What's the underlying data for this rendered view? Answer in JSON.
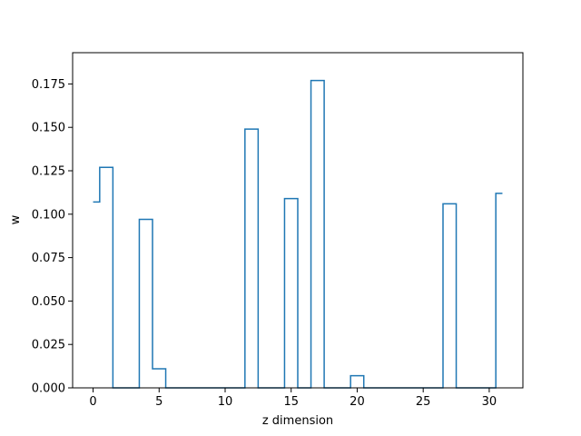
{
  "chart_data": {
    "type": "line",
    "drawstyle": "steps-mid",
    "title": "",
    "xlabel": "z dimension",
    "ylabel": "w",
    "xlim": [
      -1.55,
      32.55
    ],
    "ylim": [
      0.0,
      0.193
    ],
    "grid": false,
    "x": [
      0,
      1,
      2,
      3,
      4,
      5,
      6,
      7,
      8,
      9,
      10,
      11,
      12,
      13,
      14,
      15,
      16,
      17,
      18,
      19,
      20,
      21,
      22,
      23,
      24,
      25,
      26,
      27,
      28,
      29,
      30,
      31
    ],
    "series": [
      {
        "name": "",
        "color": "#1f77b4",
        "values": [
          0.107,
          0.127,
          0.0,
          0.0,
          0.097,
          0.011,
          0.0,
          0.0,
          0.0,
          0.0,
          0.0,
          0.0,
          0.149,
          0.0,
          0.0,
          0.109,
          0.0,
          0.177,
          0.0,
          0.0,
          0.007,
          0.0,
          0.0,
          0.0,
          0.0,
          0.0,
          0.0,
          0.106,
          0.0,
          0.0,
          0.0,
          0.112
        ]
      }
    ],
    "x_ticks": [
      0,
      5,
      10,
      15,
      20,
      25,
      30
    ],
    "x_tick_labels": [
      "0",
      "5",
      "10",
      "15",
      "20",
      "25",
      "30"
    ],
    "y_ticks": [
      0.0,
      0.025,
      0.05,
      0.075,
      0.1,
      0.125,
      0.15,
      0.175
    ],
    "y_tick_labels": [
      "0.000",
      "0.025",
      "0.050",
      "0.075",
      "0.100",
      "0.125",
      "0.150",
      "0.175"
    ]
  }
}
